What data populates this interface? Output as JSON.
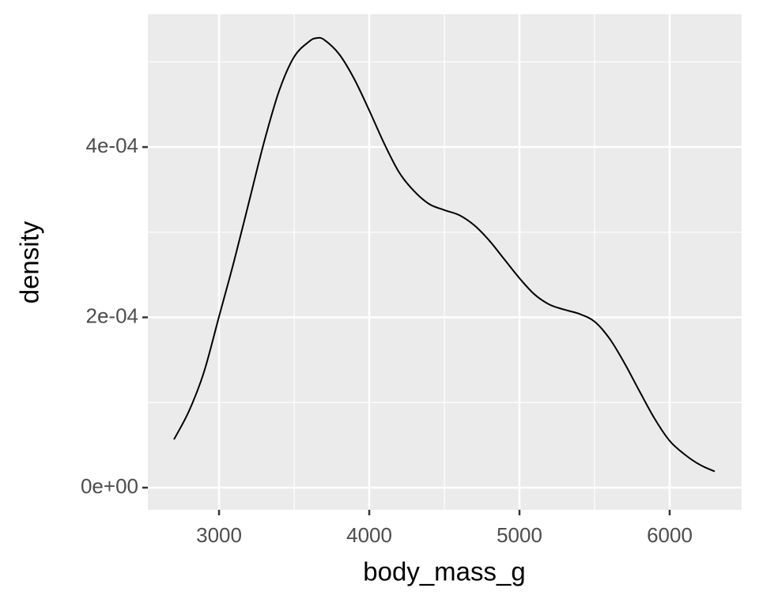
{
  "chart_data": {
    "type": "density",
    "x_label": "body_mass_g",
    "y_label": "density",
    "x": [
      2700,
      2800,
      2900,
      3000,
      3100,
      3200,
      3300,
      3400,
      3500,
      3600,
      3650,
      3700,
      3800,
      3900,
      4000,
      4100,
      4200,
      4300,
      4400,
      4500,
      4600,
      4700,
      4800,
      4900,
      5000,
      5100,
      5200,
      5300,
      5400,
      5500,
      5600,
      5700,
      5800,
      5900,
      6000,
      6100,
      6200,
      6300
    ],
    "y": [
      5.66e-05,
      9e-05,
      0.000136,
      0.000201,
      0.000266,
      0.000336,
      0.000406,
      0.000466,
      0.000506,
      0.000524,
      0.000528,
      0.000526,
      0.000509,
      0.00048,
      0.000443,
      0.000404,
      0.00037,
      0.000348,
      0.000333,
      0.000326,
      0.00032,
      0.000308,
      0.00029,
      0.000268,
      0.000246,
      0.000227,
      0.000215,
      0.000209,
      0.000204,
      0.000195,
      0.000175,
      0.000146,
      0.000113,
      8.1e-05,
      5.5e-05,
      3.9e-05,
      2.7e-05,
      1.9e-05
    ],
    "color": "#000000",
    "xlim": [
      2526,
      6479
    ],
    "ylim": [
      -2.6e-05,
      0.000556
    ],
    "xticks": [
      3000,
      4000,
      5000,
      6000
    ],
    "yticks": [
      {
        "value": 0,
        "label": "0e+00"
      },
      {
        "value": 0.0002,
        "label": "2e-04"
      },
      {
        "value": 0.0004,
        "label": "4e-04"
      }
    ],
    "x_minor_ticks": [
      3500,
      4500,
      5500
    ],
    "y_minor_ticks": [
      0.0001,
      0.0003,
      0.0005
    ],
    "grid": true
  }
}
